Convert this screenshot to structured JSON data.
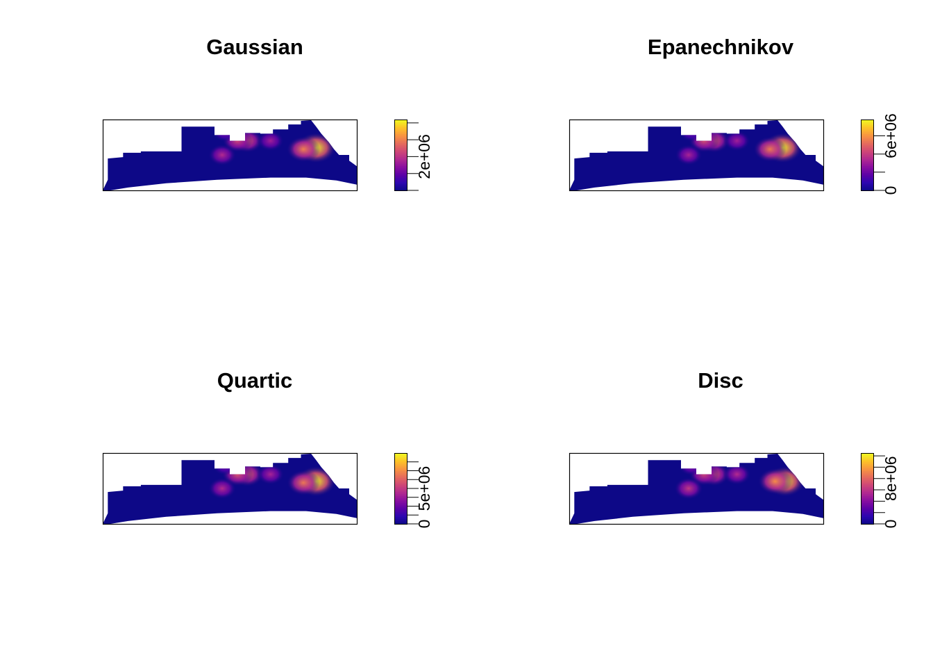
{
  "figure": {
    "palette": [
      "#0d0887",
      "#2c06b0",
      "#5c01a6",
      "#8a0fa0",
      "#b12a90",
      "#cf4777",
      "#e66c5c",
      "#f89541",
      "#fdc328",
      "#f0f921"
    ]
  },
  "chart_data": [
    {
      "type": "heatmap",
      "title": "Gaussian",
      "colorbar": {
        "min": 0,
        "max": 4200000,
        "ticks": [
          0,
          1000000,
          2000000,
          3000000,
          4000000,
          5000000
        ],
        "tick_labels": [
          {
            "value": 2000000,
            "label": "2e+06"
          }
        ]
      },
      "hotspots": [
        {
          "x": 0.84,
          "y": 0.4,
          "v": 1.0
        },
        {
          "x": 0.79,
          "y": 0.42,
          "v": 0.72
        },
        {
          "x": 0.57,
          "y": 0.3,
          "v": 0.6
        },
        {
          "x": 0.53,
          "y": 0.3,
          "v": 0.55
        },
        {
          "x": 0.47,
          "y": 0.5,
          "v": 0.45
        },
        {
          "x": 0.66,
          "y": 0.3,
          "v": 0.4
        },
        {
          "x": 0.94,
          "y": 0.18,
          "v": 0.4
        },
        {
          "x": 0.48,
          "y": 0.18,
          "v": 0.3
        }
      ]
    },
    {
      "type": "heatmap",
      "title": "Epanechnikov",
      "colorbar": {
        "min": 0,
        "max": 7800000,
        "ticks": [
          0,
          2000000,
          4000000,
          6000000
        ],
        "tick_labels": [
          {
            "value": 0,
            "label": "0"
          },
          {
            "value": 6000000,
            "label": "6e+06"
          }
        ]
      },
      "hotspots": [
        {
          "x": 0.84,
          "y": 0.4,
          "v": 1.0
        },
        {
          "x": 0.79,
          "y": 0.42,
          "v": 0.7
        },
        {
          "x": 0.57,
          "y": 0.3,
          "v": 0.62
        },
        {
          "x": 0.53,
          "y": 0.3,
          "v": 0.58
        },
        {
          "x": 0.47,
          "y": 0.5,
          "v": 0.42
        },
        {
          "x": 0.66,
          "y": 0.3,
          "v": 0.4
        },
        {
          "x": 0.94,
          "y": 0.18,
          "v": 0.42
        },
        {
          "x": 0.48,
          "y": 0.18,
          "v": 0.28
        }
      ]
    },
    {
      "type": "heatmap",
      "title": "Quartic",
      "colorbar": {
        "min": 0,
        "max": 10000000,
        "ticks": [
          0,
          1250000,
          2500000,
          3750000,
          5000000,
          6250000,
          7500000,
          8750000
        ],
        "tick_labels": [
          {
            "value": 0,
            "label": "0"
          },
          {
            "value": 5000000,
            "label": "5e+06"
          }
        ]
      },
      "hotspots": [
        {
          "x": 0.84,
          "y": 0.4,
          "v": 1.0
        },
        {
          "x": 0.79,
          "y": 0.42,
          "v": 0.7
        },
        {
          "x": 0.57,
          "y": 0.3,
          "v": 0.65
        },
        {
          "x": 0.53,
          "y": 0.3,
          "v": 0.6
        },
        {
          "x": 0.47,
          "y": 0.5,
          "v": 0.45
        },
        {
          "x": 0.66,
          "y": 0.3,
          "v": 0.42
        },
        {
          "x": 0.94,
          "y": 0.18,
          "v": 0.45
        },
        {
          "x": 0.48,
          "y": 0.18,
          "v": 0.3
        }
      ]
    },
    {
      "type": "heatmap",
      "title": "Disc",
      "colorbar": {
        "min": 0,
        "max": 12500000,
        "ticks": [
          0,
          2000000,
          4000000,
          6000000,
          8000000,
          10000000,
          12000000
        ],
        "tick_labels": [
          {
            "value": 0,
            "label": "0"
          },
          {
            "value": 8000000,
            "label": "8e+06"
          }
        ]
      },
      "hotspots": [
        {
          "x": 0.85,
          "y": 0.4,
          "v": 1.0
        },
        {
          "x": 0.81,
          "y": 0.4,
          "v": 0.75
        },
        {
          "x": 0.57,
          "y": 0.3,
          "v": 0.6
        },
        {
          "x": 0.53,
          "y": 0.3,
          "v": 0.55
        },
        {
          "x": 0.47,
          "y": 0.5,
          "v": 0.5
        },
        {
          "x": 0.66,
          "y": 0.3,
          "v": 0.45
        },
        {
          "x": 0.94,
          "y": 0.18,
          "v": 0.45
        },
        {
          "x": 0.48,
          "y": 0.18,
          "v": 0.35
        }
      ]
    }
  ]
}
